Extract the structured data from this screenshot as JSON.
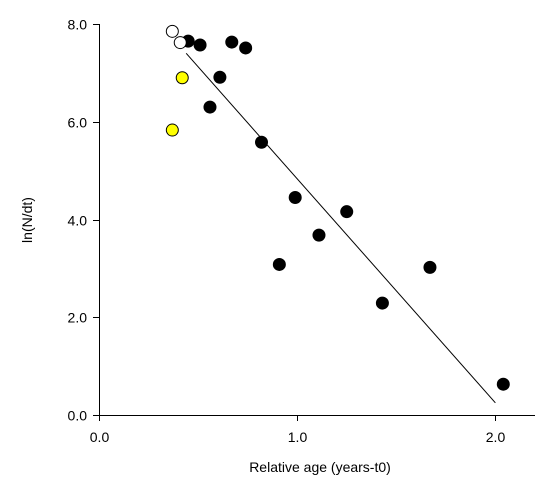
{
  "chart_data": {
    "type": "scatter",
    "xlabel": "Relative age (years-t0)",
    "ylabel": "ln(N/dt)",
    "xlim": [
      0.0,
      2.2
    ],
    "ylim": [
      0.0,
      8.0
    ],
    "x_ticks": [
      0.0,
      1.0,
      2.0
    ],
    "x_tick_labels": [
      "0.0",
      "1.0",
      "2.0"
    ],
    "y_ticks": [
      0.0,
      2.0,
      4.0,
      6.0,
      8.0
    ],
    "y_tick_labels": [
      "0.0",
      "2.0",
      "4.0",
      "6.0",
      "8.0"
    ],
    "grid": false,
    "series": [
      {
        "marker": "filled-circle",
        "color": "#000000",
        "stroke": "#000000",
        "points": [
          [
            0.45,
            7.65
          ],
          [
            0.51,
            7.57
          ],
          [
            0.67,
            7.63
          ],
          [
            0.74,
            7.51
          ],
          [
            0.61,
            6.91
          ],
          [
            0.56,
            6.3
          ],
          [
            0.82,
            5.58
          ],
          [
            0.99,
            4.45
          ],
          [
            1.25,
            4.16
          ],
          [
            1.11,
            3.68
          ],
          [
            0.91,
            3.08
          ],
          [
            1.67,
            3.02
          ],
          [
            1.43,
            2.29
          ],
          [
            2.04,
            0.63
          ]
        ]
      },
      {
        "marker": "open-circle",
        "color": "#ffffff",
        "stroke": "#000000",
        "points": [
          [
            0.37,
            7.85
          ],
          [
            0.41,
            7.62
          ]
        ]
      },
      {
        "marker": "yellow-circle",
        "color": "#ffff00",
        "stroke": "#000000",
        "points": [
          [
            0.42,
            6.9
          ],
          [
            0.37,
            5.83
          ]
        ]
      }
    ],
    "fit_line": {
      "x": [
        0.44,
        2.0
      ],
      "y": [
        7.4,
        0.25
      ]
    }
  }
}
